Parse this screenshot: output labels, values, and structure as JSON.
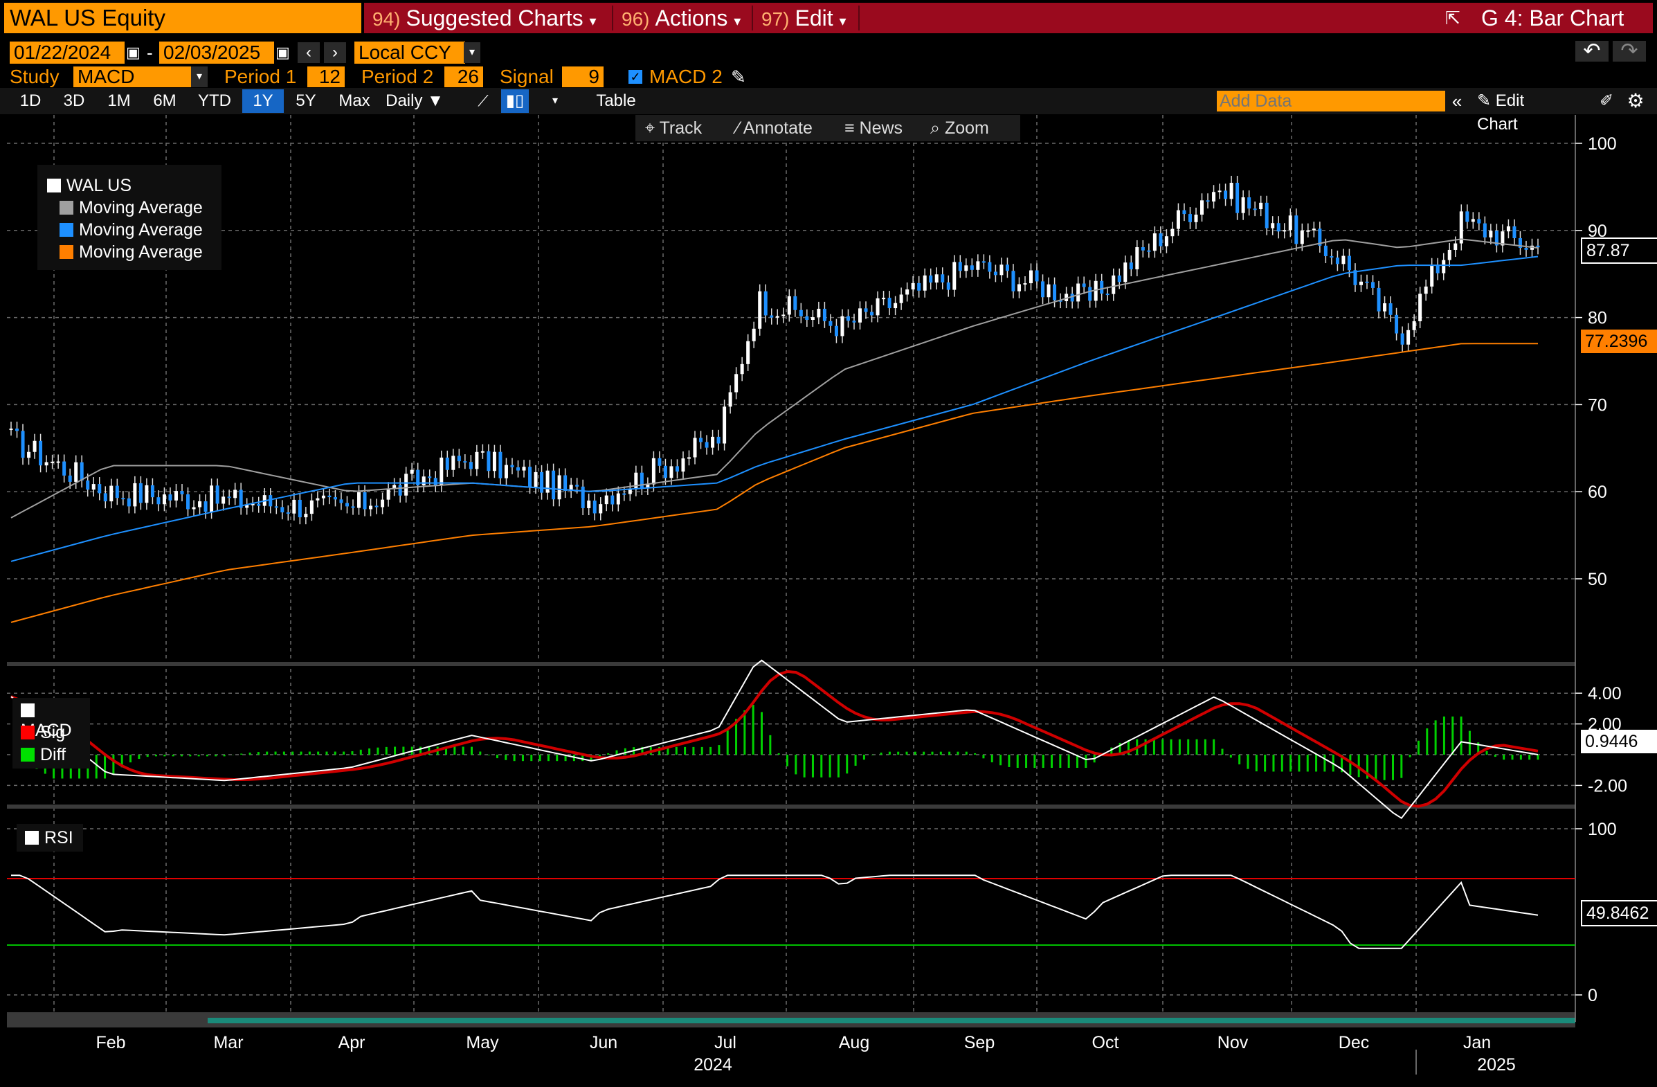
{
  "header": {
    "ticker": "WAL US Equity",
    "menus": [
      {
        "num": "94)",
        "label": "Suggested Charts"
      },
      {
        "num": "96)",
        "label": "Actions"
      },
      {
        "num": "97)",
        "label": "Edit"
      }
    ],
    "chart_name": "G 4: Bar Chart"
  },
  "controls": {
    "start_date": "01/22/2024",
    "end_date": "02/03/2025",
    "currency": "Local CCY",
    "study_label": "Study",
    "study_value": "MACD",
    "period1_label": "Period 1",
    "period1_value": "12",
    "period2_label": "Period 2",
    "period2_value": "26",
    "signal_label": "Signal",
    "signal_value": "9",
    "macd2_label": "MACD 2"
  },
  "toolbar": {
    "ranges": [
      "1D",
      "3D",
      "1M",
      "6M",
      "YTD",
      "1Y",
      "5Y",
      "Max"
    ],
    "active_range": "1Y",
    "frequency": "Daily",
    "table_label": "Table",
    "add_data_placeholder": "Add Data",
    "edit_chart_label": "Edit Chart"
  },
  "chart_tools": [
    "Track",
    "Annotate",
    "News",
    "Zoom"
  ],
  "price_panel": {
    "legend": [
      {
        "label": "WAL US",
        "color": "#ffffff"
      },
      {
        "label": "Moving Average",
        "color": "#a0a0a0"
      },
      {
        "label": "Moving Average",
        "color": "#1e90ff"
      },
      {
        "label": "Moving Average",
        "color": "#ff7f00"
      }
    ],
    "y_ticks": [
      "100",
      "90",
      "80",
      "70",
      "60",
      "50"
    ],
    "last_price": "87.87",
    "ma_value": "77.2396"
  },
  "macd_panel": {
    "legend": [
      {
        "label": "MACD",
        "color": "#ffffff"
      },
      {
        "label": "Sig",
        "color": "#ff0000"
      },
      {
        "label": "Diff",
        "color": "#00e000"
      }
    ],
    "y_ticks": [
      "4.00",
      "2.00",
      "-2.00"
    ],
    "last_value": "0.9446"
  },
  "rsi_panel": {
    "legend": [
      {
        "label": "RSI",
        "color": "#ffffff"
      }
    ],
    "y_ticks": [
      "100",
      "0"
    ],
    "last_value": "49.8462"
  },
  "x_axis": {
    "months": [
      "Feb",
      "Mar",
      "Apr",
      "May",
      "Jun",
      "Jul",
      "Aug",
      "Sep",
      "Oct",
      "Nov",
      "Dec",
      "Jan"
    ],
    "years": [
      "2024",
      "2025"
    ]
  },
  "chart_data": {
    "type": "line",
    "x": [
      "2024-01-22",
      "2024-02-15",
      "2024-03-15",
      "2024-04-15",
      "2024-05-15",
      "2024-06-14",
      "2024-07-15",
      "2024-07-25",
      "2024-08-15",
      "2024-09-16",
      "2024-10-15",
      "2024-11-15",
      "2024-12-16",
      "2024-12-31",
      "2025-01-15",
      "2025-02-03"
    ],
    "series": [
      {
        "name": "WAL US",
        "values": [
          66,
          60,
          59,
          58,
          64,
          59,
          66,
          82,
          79,
          86,
          82,
          95,
          87,
          78,
          91,
          88
        ]
      },
      {
        "name": "Moving Average",
        "values": [
          57,
          63,
          63,
          60,
          61,
          60,
          62,
          67,
          74,
          79,
          83,
          86,
          89,
          88,
          89,
          88
        ]
      },
      {
        "name": "Moving Average",
        "values": [
          52,
          55,
          58,
          61,
          61,
          60,
          61,
          63,
          66,
          70,
          75,
          80,
          85,
          86,
          86,
          87
        ]
      },
      {
        "name": "Moving Average",
        "values": [
          45,
          48,
          51,
          53,
          55,
          56,
          58,
          61,
          65,
          69,
          71,
          73,
          75,
          76,
          77,
          77
        ]
      }
    ],
    "ylim": [
      40,
      105
    ]
  }
}
